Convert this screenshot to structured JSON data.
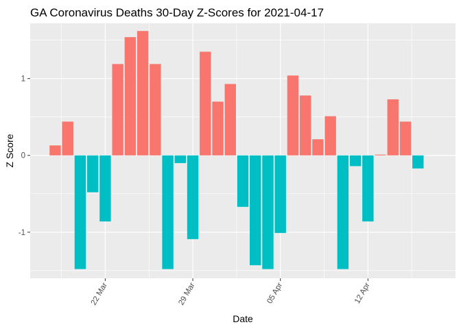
{
  "chart_data": {
    "type": "bar",
    "title": "GA Coronavirus Deaths 30-Day Z-Scores for 2021-04-17",
    "xlabel": "Date",
    "ylabel": "Z Score",
    "x_axis": {
      "type": "date",
      "range": [
        "2021-03-16",
        "2021-04-19"
      ],
      "ticks": [
        {
          "date": "2021-03-22",
          "label": "22 Mar"
        },
        {
          "date": "2021-03-29",
          "label": "29 Mar"
        },
        {
          "date": "2021-04-05",
          "label": "05 Apr"
        },
        {
          "date": "2021-04-12",
          "label": "12 Apr"
        }
      ],
      "tick_label_rotation": "60 degrees"
    },
    "y_axis": {
      "range": [
        -1.6,
        1.72
      ],
      "ticks": [
        -1,
        0,
        1
      ],
      "tick_labels": [
        "-1",
        "0",
        "1"
      ]
    },
    "grid": true,
    "legend": "none",
    "colors": {
      "positive": "#F8766D",
      "negative": "#00BFC4"
    },
    "dates": [
      "2021-03-18",
      "2021-03-19",
      "2021-03-20",
      "2021-03-21",
      "2021-03-22",
      "2021-03-23",
      "2021-03-24",
      "2021-03-25",
      "2021-03-26",
      "2021-03-27",
      "2021-03-28",
      "2021-03-29",
      "2021-03-30",
      "2021-03-31",
      "2021-04-01",
      "2021-04-02",
      "2021-04-03",
      "2021-04-04",
      "2021-04-05",
      "2021-04-06",
      "2021-04-07",
      "2021-04-08",
      "2021-04-09",
      "2021-04-10",
      "2021-04-11",
      "2021-04-12",
      "2021-04-13",
      "2021-04-14",
      "2021-04-15",
      "2021-04-16",
      "2021-04-17"
    ],
    "values": [
      0.13,
      0.44,
      -1.48,
      -0.48,
      -0.86,
      1.19,
      1.54,
      1.62,
      1.19,
      -1.48,
      -0.1,
      -1.09,
      1.35,
      0.7,
      0.93,
      -0.67,
      -1.43,
      -1.48,
      -1.01,
      1.04,
      0.78,
      0.21,
      0.51,
      -1.48,
      -0.14,
      -0.86,
      0.01,
      0.73,
      0.44,
      -0.17,
      0.0
    ]
  }
}
